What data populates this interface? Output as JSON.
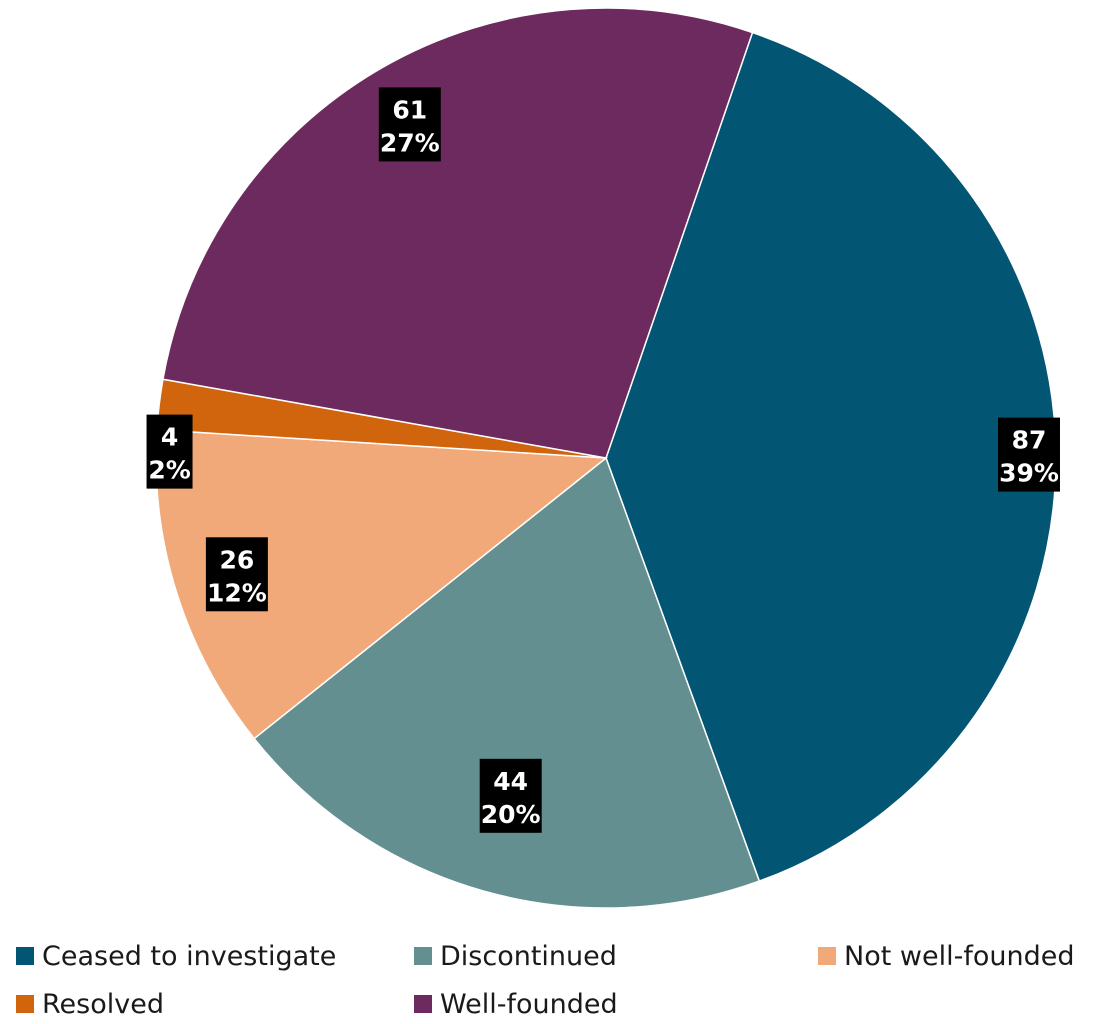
{
  "chart_data": {
    "type": "pie",
    "title": "",
    "start_angle_deg": 19,
    "direction": "clockwise",
    "slices": [
      {
        "label": "Ceased to investigate",
        "value": 87,
        "percent_label": "39%",
        "color": "#035574"
      },
      {
        "label": "Discontinued",
        "value": 44,
        "percent_label": "20%",
        "color": "#638F91"
      },
      {
        "label": "Not well-founded",
        "value": 26,
        "percent_label": "12%",
        "color": "#F2A97A"
      },
      {
        "label": "Resolved",
        "value": 4,
        "percent_label": "2%",
        "color": "#D0650E"
      },
      {
        "label": "Well-founded",
        "value": 61,
        "percent_label": "27%",
        "color": "#6D2A5E"
      }
    ],
    "legend": {
      "placement": "bottom",
      "items": [
        "Ceased to investigate",
        "Discontinued",
        "Not well-founded",
        "Resolved",
        "Well-founded"
      ]
    },
    "data_labels": "value and percent in black boxes"
  }
}
